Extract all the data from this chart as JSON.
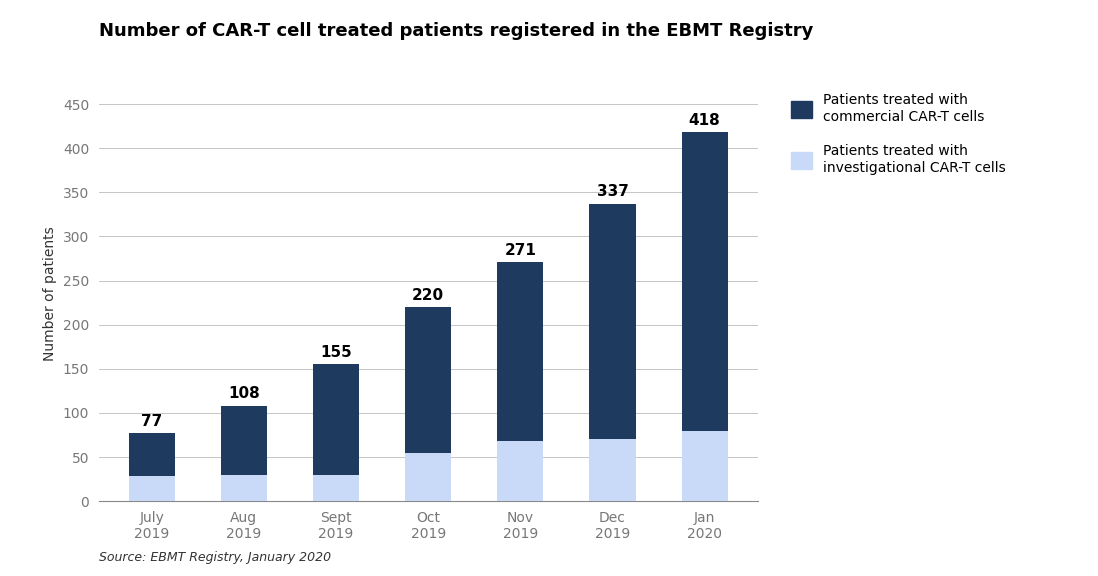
{
  "title": "Number of CAR-T cell treated patients registered in the EBMT Registry",
  "ylabel": "Number of patients",
  "source": "Source: EBMT Registry, January 2020",
  "categories": [
    "July\n2019",
    "Aug\n2019",
    "Sept\n2019",
    "Oct\n2019",
    "Nov\n2019",
    "Dec\n2019",
    "Jan\n2020"
  ],
  "totals": [
    77,
    108,
    155,
    220,
    271,
    337,
    418
  ],
  "investigational": [
    28,
    30,
    30,
    55,
    68,
    70,
    80
  ],
  "color_commercial": "#1e3a5f",
  "color_investigational": "#c9daf8",
  "ylim": [
    0,
    470
  ],
  "yticks": [
    0,
    50,
    100,
    150,
    200,
    250,
    300,
    350,
    400,
    450
  ],
  "legend_commercial": "Patients treated with\ncommercial CAR-T cells",
  "legend_investigational": "Patients treated with\ninvestigational CAR-T cells",
  "bar_width": 0.5,
  "title_fontsize": 13,
  "label_fontsize": 10,
  "tick_fontsize": 10,
  "value_fontsize": 11,
  "background_color": "#ffffff",
  "grid_color": "#bbbbbb",
  "tick_color": "#777777"
}
